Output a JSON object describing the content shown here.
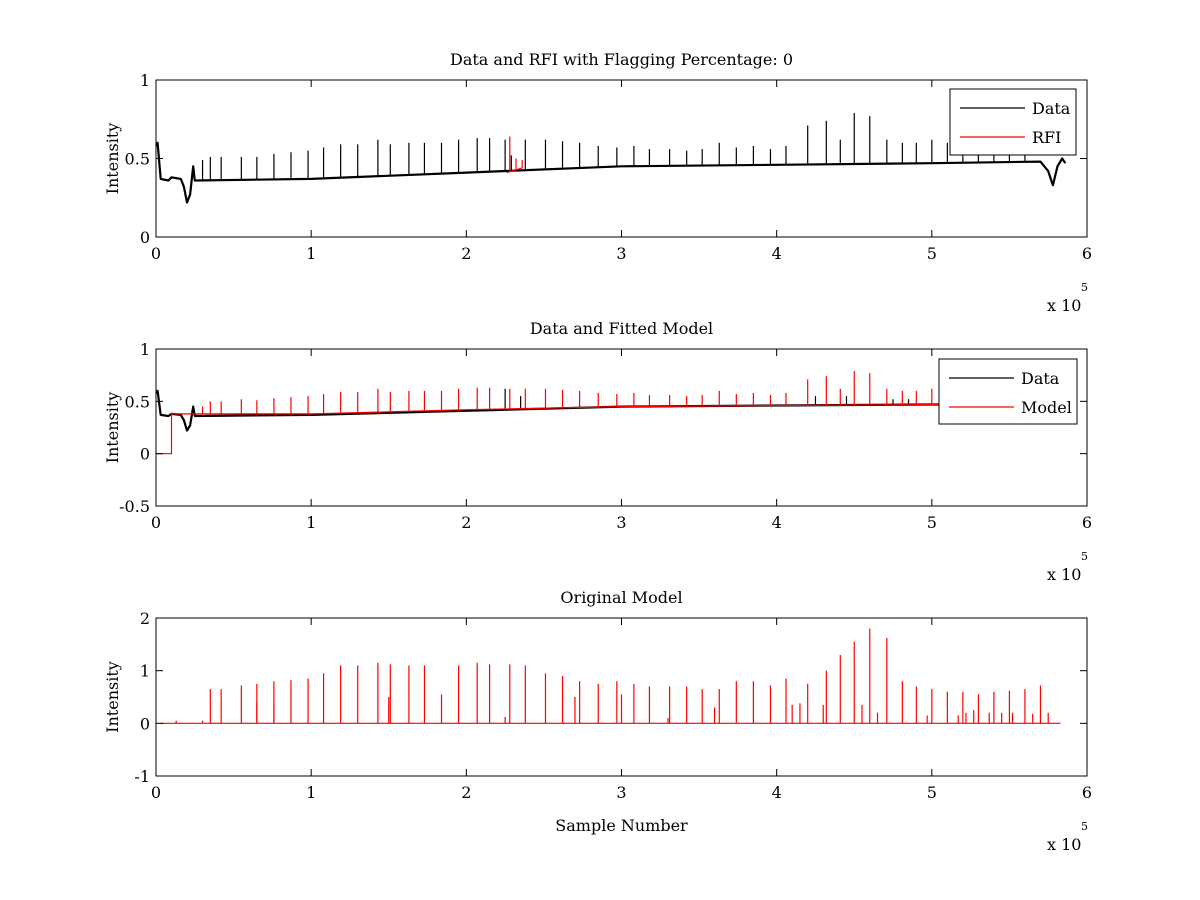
{
  "colors": {
    "data": "#000000",
    "rfi": "#ff0000",
    "model": "#ff0000",
    "background": "#ffffff",
    "axes": "#000000"
  },
  "chart_data": [
    {
      "type": "line",
      "title": "Data and RFI with Flagging Percentage: 0",
      "xlabel": "",
      "ylabel": "Intensity",
      "xlim": [
        0,
        600000
      ],
      "ylim": [
        0,
        1
      ],
      "xticks": [
        "0",
        "1",
        "2",
        "3",
        "4",
        "5",
        "6"
      ],
      "yticks": [
        "0",
        "0.5",
        "1"
      ],
      "x_multiplier": {
        "base": "x 10",
        "exponent": "5"
      },
      "legend": {
        "position": "top-right",
        "entries": [
          "Data",
          "RFI"
        ]
      },
      "series": [
        {
          "name": "Data",
          "color": "#000000",
          "baseline": [
            [
              0,
              0.58
            ],
            [
              1000,
              0.6
            ],
            [
              3000,
              0.37
            ],
            [
              8000,
              0.36
            ],
            [
              10000,
              0.38
            ],
            [
              16000,
              0.37
            ],
            [
              18000,
              0.32
            ],
            [
              20000,
              0.22
            ],
            [
              22000,
              0.27
            ],
            [
              24000,
              0.45
            ],
            [
              25000,
              0.36
            ],
            [
              100000,
              0.37
            ],
            [
              200000,
              0.41
            ],
            [
              300000,
              0.45
            ],
            [
              400000,
              0.46
            ],
            [
              500000,
              0.47
            ],
            [
              570000,
              0.48
            ],
            [
              575000,
              0.42
            ],
            [
              578000,
              0.33
            ],
            [
              581000,
              0.45
            ],
            [
              584000,
              0.5
            ],
            [
              586000,
              0.47
            ]
          ],
          "spikes": [
            [
              30000,
              0.49
            ],
            [
              35000,
              0.51
            ],
            [
              42000,
              0.51
            ],
            [
              55000,
              0.51
            ],
            [
              65000,
              0.51
            ],
            [
              76000,
              0.53
            ],
            [
              87000,
              0.54
            ],
            [
              98000,
              0.55
            ],
            [
              108000,
              0.57
            ],
            [
              119000,
              0.59
            ],
            [
              130000,
              0.59
            ],
            [
              143000,
              0.62
            ],
            [
              151000,
              0.59
            ],
            [
              163000,
              0.6
            ],
            [
              173000,
              0.6
            ],
            [
              184000,
              0.6
            ],
            [
              195000,
              0.62
            ],
            [
              207000,
              0.63
            ],
            [
              215000,
              0.63
            ],
            [
              225000,
              0.62
            ],
            [
              229000,
              0.52
            ],
            [
              238000,
              0.62
            ],
            [
              251000,
              0.62
            ],
            [
              262000,
              0.61
            ],
            [
              273000,
              0.6
            ],
            [
              285000,
              0.58
            ],
            [
              297000,
              0.57
            ],
            [
              308000,
              0.58
            ],
            [
              318000,
              0.56
            ],
            [
              331000,
              0.56
            ],
            [
              342000,
              0.55
            ],
            [
              352000,
              0.56
            ],
            [
              363000,
              0.6
            ],
            [
              374000,
              0.57
            ],
            [
              385000,
              0.58
            ],
            [
              396000,
              0.56
            ],
            [
              406000,
              0.58
            ],
            [
              420000,
              0.71
            ],
            [
              432000,
              0.74
            ],
            [
              441000,
              0.62
            ],
            [
              450000,
              0.79
            ],
            [
              460000,
              0.77
            ],
            [
              471000,
              0.62
            ],
            [
              481000,
              0.6
            ],
            [
              490000,
              0.6
            ],
            [
              500000,
              0.62
            ],
            [
              510000,
              0.6
            ],
            [
              520000,
              0.59
            ],
            [
              530000,
              0.57
            ],
            [
              540000,
              0.56
            ],
            [
              550000,
              0.55
            ],
            [
              560000,
              0.55
            ]
          ]
        },
        {
          "name": "RFI",
          "color": "#ff0000",
          "baseline": [
            [
              226000,
              0.41
            ],
            [
              236000,
              0.44
            ]
          ],
          "spikes": [
            [
              228000,
              0.64
            ],
            [
              232000,
              0.5
            ],
            [
              236000,
              0.49
            ]
          ]
        }
      ]
    },
    {
      "type": "line",
      "title": "Data and Fitted Model",
      "xlabel": "",
      "ylabel": "Intensity",
      "xlim": [
        0,
        600000
      ],
      "ylim": [
        -0.5,
        1
      ],
      "xticks": [
        "0",
        "1",
        "2",
        "3",
        "4",
        "5",
        "6"
      ],
      "yticks": [
        "-0.5",
        "0",
        "0.5",
        "1"
      ],
      "x_multiplier": {
        "base": "x 10",
        "exponent": "5"
      },
      "legend": {
        "position": "top-right",
        "entries": [
          "Data",
          "Model"
        ]
      },
      "series": [
        {
          "name": "Data",
          "color": "#000000",
          "baseline": [
            [
              0,
              0.58
            ],
            [
              1000,
              0.6
            ],
            [
              3000,
              0.37
            ],
            [
              8000,
              0.36
            ],
            [
              10000,
              0.38
            ],
            [
              16000,
              0.37
            ],
            [
              18000,
              0.32
            ],
            [
              20000,
              0.22
            ],
            [
              22000,
              0.27
            ],
            [
              24000,
              0.45
            ],
            [
              25000,
              0.36
            ],
            [
              100000,
              0.37
            ],
            [
              200000,
              0.41
            ],
            [
              300000,
              0.45
            ],
            [
              400000,
              0.46
            ],
            [
              500000,
              0.47
            ],
            [
              505000,
              0.47
            ]
          ],
          "spikes": [
            [
              225000,
              0.62
            ],
            [
              235000,
              0.55
            ],
            [
              425000,
              0.55
            ],
            [
              445000,
              0.55
            ],
            [
              475000,
              0.52
            ],
            [
              485000,
              0.52
            ]
          ]
        },
        {
          "name": "Model",
          "color": "#ff0000",
          "baseline": [
            [
              0,
              0.0
            ],
            [
              10000,
              0.0
            ],
            [
              10000,
              0.38
            ],
            [
              50000,
              0.38
            ],
            [
              100000,
              0.38
            ],
            [
              200000,
              0.42
            ],
            [
              300000,
              0.45
            ],
            [
              400000,
              0.46
            ],
            [
              505000,
              0.47
            ]
          ],
          "spikes": [
            [
              30000,
              0.45
            ],
            [
              35000,
              0.5
            ],
            [
              42000,
              0.5
            ],
            [
              55000,
              0.52
            ],
            [
              65000,
              0.51
            ],
            [
              76000,
              0.53
            ],
            [
              87000,
              0.54
            ],
            [
              98000,
              0.55
            ],
            [
              108000,
              0.57
            ],
            [
              119000,
              0.59
            ],
            [
              130000,
              0.59
            ],
            [
              143000,
              0.62
            ],
            [
              151000,
              0.59
            ],
            [
              163000,
              0.6
            ],
            [
              173000,
              0.6
            ],
            [
              184000,
              0.6
            ],
            [
              195000,
              0.62
            ],
            [
              207000,
              0.63
            ],
            [
              215000,
              0.63
            ],
            [
              228000,
              0.62
            ],
            [
              238000,
              0.62
            ],
            [
              251000,
              0.62
            ],
            [
              262000,
              0.61
            ],
            [
              273000,
              0.6
            ],
            [
              285000,
              0.58
            ],
            [
              297000,
              0.57
            ],
            [
              308000,
              0.58
            ],
            [
              318000,
              0.56
            ],
            [
              331000,
              0.56
            ],
            [
              342000,
              0.55
            ],
            [
              352000,
              0.56
            ],
            [
              363000,
              0.6
            ],
            [
              374000,
              0.57
            ],
            [
              385000,
              0.58
            ],
            [
              396000,
              0.56
            ],
            [
              406000,
              0.58
            ],
            [
              420000,
              0.71
            ],
            [
              432000,
              0.74
            ],
            [
              441000,
              0.62
            ],
            [
              450000,
              0.79
            ],
            [
              460000,
              0.77
            ],
            [
              471000,
              0.62
            ],
            [
              481000,
              0.6
            ],
            [
              490000,
              0.6
            ],
            [
              500000,
              0.62
            ]
          ]
        }
      ]
    },
    {
      "type": "line",
      "title": "Original Model",
      "xlabel": "Sample Number",
      "ylabel": "Intensity",
      "xlim": [
        0,
        600000
      ],
      "ylim": [
        -1,
        2
      ],
      "xticks": [
        "0",
        "1",
        "2",
        "3",
        "4",
        "5",
        "6"
      ],
      "yticks": [
        "-1",
        "0",
        "1",
        "2"
      ],
      "x_multiplier": {
        "base": "x 10",
        "exponent": "5"
      },
      "legend": null,
      "series": [
        {
          "color": "#ff0000",
          "baseline": [
            [
              3000,
              0.0
            ],
            [
              583000,
              0.0
            ]
          ],
          "spikes": [
            [
              13000,
              0.05
            ],
            [
              30000,
              0.05
            ],
            [
              35000,
              0.65
            ],
            [
              42000,
              0.65
            ],
            [
              55000,
              0.72
            ],
            [
              65000,
              0.75
            ],
            [
              76000,
              0.8
            ],
            [
              87000,
              0.82
            ],
            [
              98000,
              0.85
            ],
            [
              108000,
              0.95
            ],
            [
              119000,
              1.1
            ],
            [
              130000,
              1.1
            ],
            [
              143000,
              1.15
            ],
            [
              151000,
              1.12
            ],
            [
              163000,
              1.1
            ],
            [
              173000,
              1.1
            ],
            [
              184000,
              0.55
            ],
            [
              195000,
              1.1
            ],
            [
              207000,
              1.15
            ],
            [
              215000,
              1.12
            ],
            [
              225000,
              0.12
            ],
            [
              228000,
              1.12
            ],
            [
              238000,
              1.1
            ],
            [
              251000,
              0.95
            ],
            [
              262000,
              0.9
            ],
            [
              273000,
              0.8
            ],
            [
              285000,
              0.75
            ],
            [
              297000,
              0.8
            ],
            [
              308000,
              0.75
            ],
            [
              318000,
              0.7
            ],
            [
              331000,
              0.7
            ],
            [
              342000,
              0.7
            ],
            [
              352000,
              0.65
            ],
            [
              363000,
              0.65
            ],
            [
              374000,
              0.8
            ],
            [
              385000,
              0.8
            ],
            [
              396000,
              0.72
            ],
            [
              406000,
              0.85
            ],
            [
              420000,
              0.75
            ],
            [
              432000,
              1.0
            ],
            [
              441000,
              1.3
            ],
            [
              450000,
              1.55
            ],
            [
              460000,
              1.8
            ],
            [
              471000,
              1.62
            ],
            [
              481000,
              0.8
            ],
            [
              490000,
              0.7
            ],
            [
              500000,
              0.65
            ],
            [
              510000,
              0.6
            ],
            [
              520000,
              0.6
            ],
            [
              530000,
              0.55
            ],
            [
              540000,
              0.6
            ],
            [
              550000,
              0.62
            ],
            [
              560000,
              0.65
            ],
            [
              570000,
              0.72
            ],
            [
              575000,
              0.2
            ],
            [
              65000,
              0.4
            ],
            [
              76000,
              0.35
            ],
            [
              150000,
              0.5
            ],
            [
              270000,
              0.5
            ],
            [
              300000,
              0.55
            ],
            [
              330000,
              0.1
            ],
            [
              360000,
              0.3
            ],
            [
              410000,
              0.35
            ],
            [
              415000,
              0.38
            ],
            [
              430000,
              0.35
            ],
            [
              455000,
              0.35
            ],
            [
              465000,
              0.2
            ],
            [
              497000,
              0.15
            ],
            [
              517000,
              0.15
            ],
            [
              522000,
              0.2
            ],
            [
              527000,
              0.25
            ],
            [
              537000,
              0.2
            ],
            [
              545000,
              0.2
            ],
            [
              552000,
              0.2
            ],
            [
              565000,
              0.18
            ]
          ]
        }
      ]
    }
  ]
}
